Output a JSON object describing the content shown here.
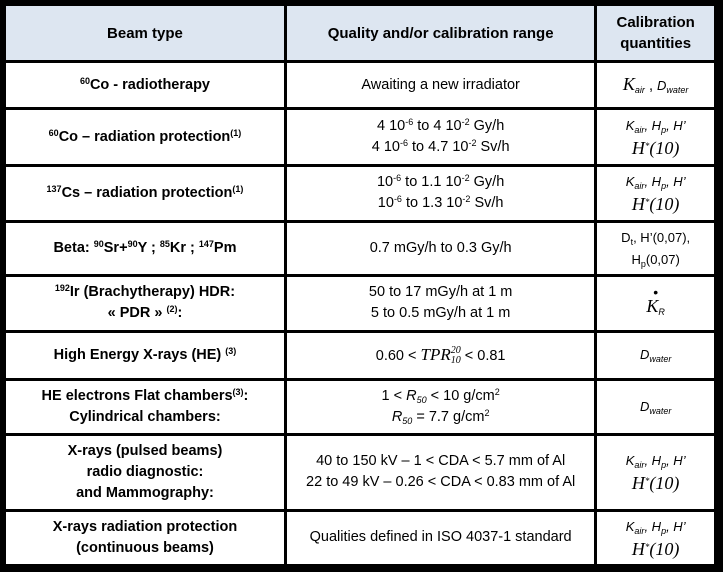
{
  "headers": {
    "beam_type": "Beam type",
    "quality": "Quality and/or calibration range",
    "calibration_1": "Calibration",
    "calibration_2": "quantities"
  },
  "rows": [
    {
      "beam": {
        "sup": "60",
        "text": "Co - radiotherapy"
      },
      "quality": [
        "Awaiting a new irradiator"
      ],
      "calib": {
        "k": "K",
        "k_sub": "air",
        "sep": " , ",
        "d": "D",
        "d_sub": "water"
      }
    },
    {
      "beam": {
        "sup": "60",
        "text": "Co – radiation protection",
        "note": "(1)"
      },
      "quality": [
        {
          "a": "4 10",
          "a_sup": "-6",
          "b": " to 4 10",
          "b_sup": "-2",
          "c": " Gy/h"
        },
        {
          "a": "4 10",
          "a_sup": "-6",
          "b": " to  4.7 10",
          "b_sup": "-2",
          "c": " Sv/h"
        }
      ],
      "calib": {
        "line1": {
          "k": "K",
          "k_sub": "air",
          "hp": ", H",
          "hp_sub": "p",
          "h": ", H’"
        },
        "line2": {
          "h": "H",
          "star": "*",
          "arg": "(10)"
        }
      }
    },
    {
      "beam": {
        "sup": "137",
        "text": "Cs – radiation protection",
        "note": "(1)"
      },
      "quality": [
        {
          "a": "10",
          "a_sup": "-6",
          "b": " to 1.1 10",
          "b_sup": "-2",
          "c": " Gy/h"
        },
        {
          "a": "10",
          "a_sup": "-6",
          "b": " to 1.3 10",
          "b_sup": "-2",
          "c": " Sv/h"
        }
      ],
      "calib": {
        "line1": {
          "k": "K",
          "k_sub": "air",
          "hp": ", H",
          "hp_sub": "p",
          "h": ", H’"
        },
        "line2": {
          "h": "H",
          "star": "*",
          "arg": "(10)"
        }
      }
    },
    {
      "beam": {
        "pre": "Beta: ",
        "s1": "90",
        "t1": "Sr+",
        "s2": "90",
        "t2": "Y ; ",
        "s3": "85",
        "t3": "Kr ; ",
        "s4": "147",
        "t4": "Pm"
      },
      "quality": [
        "0.7 mGy/h to 0.3 Gy/h"
      ],
      "calib": {
        "line1": {
          "d": "D",
          "d_sub": "t",
          "rest": ", H’(0,07),"
        },
        "line2": {
          "h": "H",
          "h_sub": "p",
          "rest": "(0,07)"
        }
      }
    },
    {
      "beam": {
        "sup": "192",
        "text": "Ir (Brachytherapy)  HDR:",
        "line2": "« PDR » ",
        "note2": "(2)",
        "end2": ":"
      },
      "quality": [
        "50 to 17 mGy/h at 1 m",
        "5 to 0.5 mGy/h at 1 m"
      ],
      "calib": {
        "dot": "•",
        "k": "K",
        "k_sub": "R"
      }
    },
    {
      "beam": {
        "text": "High Energy X-rays (HE) ",
        "note": "(3)"
      },
      "quality": {
        "pre": "0.60 < ",
        "tpr": "TPR",
        "sup": "20",
        "sub": "10",
        "post": "  <  0.81"
      },
      "calib": {
        "d": "D",
        "d_sub": "water"
      }
    },
    {
      "beam": {
        "text": "HE electrons Flat chambers",
        "note": "(3)",
        "end": ":",
        "line2": "Cylindrical chambers:"
      },
      "quality": [
        {
          "pre": "1 < ",
          "r": "R",
          "r_sub": "50",
          "post": " < 10 g/cm",
          "unit_sup": "2"
        },
        {
          "pre": "",
          "r": "R",
          "r_sub": "50",
          "post": " = 7.7 g/cm",
          "unit_sup": "2"
        }
      ],
      "calib": {
        "d": "D",
        "d_sub": "water"
      }
    },
    {
      "beam": {
        "lines": [
          "X-rays (pulsed beams)",
          "radio diagnostic:",
          "and Mammography:"
        ]
      },
      "quality": [
        "40 to 150 kV – 1 < CDA < 5.7 mm of Al",
        "22 to 49 kV – 0.26 < CDA < 0.83 mm of Al"
      ],
      "calib": {
        "line1": {
          "k": "K",
          "k_sub": "air",
          "hp": ", H",
          "hp_sub": "p",
          "h": ", H’"
        },
        "line2": {
          "h": "H",
          "star": "*",
          "arg": "(10)"
        }
      }
    },
    {
      "beam": {
        "lines": [
          "X-rays radiation protection",
          "(continuous beams)"
        ]
      },
      "quality": [
        "Qualities defined in ISO 4037-1 standard"
      ],
      "calib": {
        "line1": {
          "k": "K",
          "k_sub": "air",
          "hp": ", H",
          "hp_sub": "p",
          "h": ", H’"
        },
        "line2": {
          "h": "H",
          "star": "*",
          "arg": "(10)"
        }
      }
    }
  ]
}
